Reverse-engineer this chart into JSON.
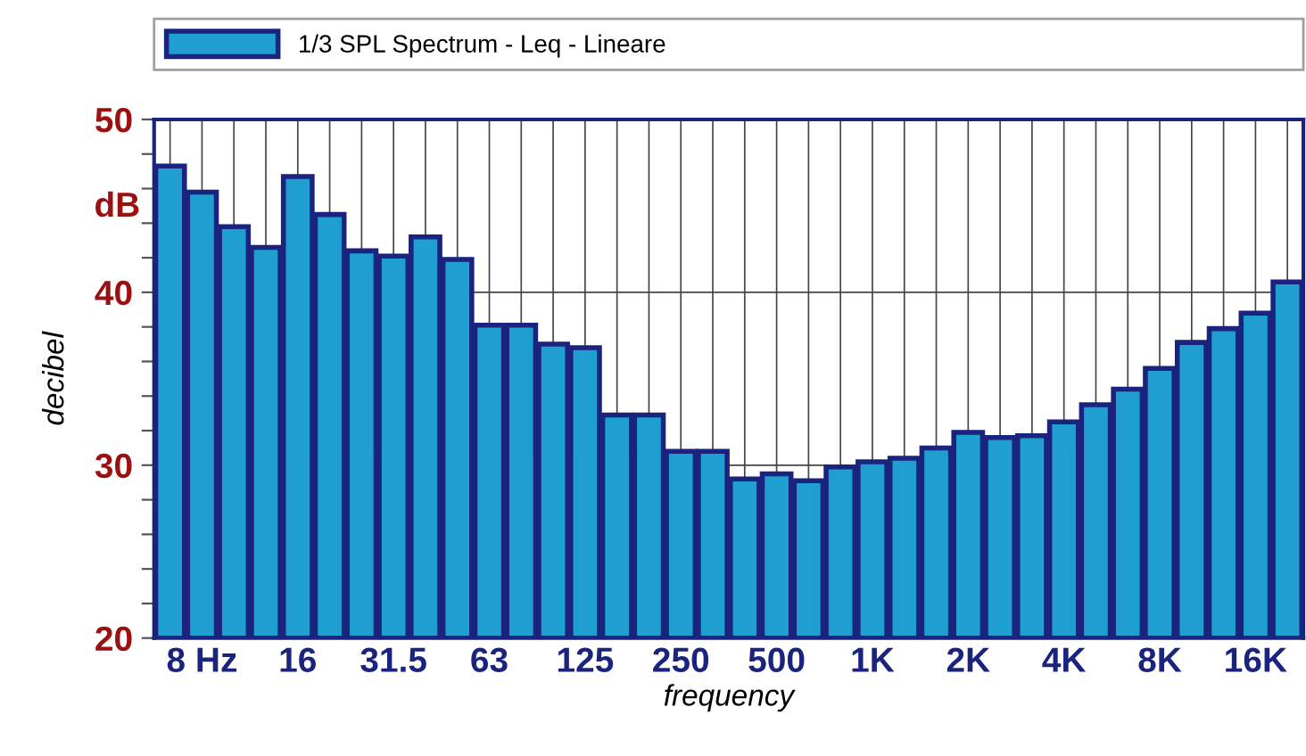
{
  "chart_data": {
    "type": "bar",
    "xlabel": "frequency",
    "ylabel": "decibel",
    "annotations": [
      "dB"
    ],
    "categories": [
      null,
      "8 Hz",
      null,
      null,
      "16",
      null,
      null,
      "31.5",
      null,
      null,
      "63",
      null,
      null,
      "125",
      null,
      null,
      "250",
      null,
      null,
      "500",
      null,
      null,
      "1K",
      null,
      null,
      "2K",
      null,
      null,
      "4K",
      null,
      null,
      "8K",
      null,
      null,
      "16K",
      null
    ],
    "series": [
      {
        "name": "1/3 SPL Spectrum - Leq - Lineare",
        "color": "#1e9fd0",
        "values": [
          47.3,
          45.8,
          43.8,
          42.6,
          46.7,
          44.5,
          42.4,
          42.1,
          43.2,
          41.9,
          38.1,
          38.1,
          37.0,
          36.8,
          32.9,
          32.9,
          30.8,
          30.8,
          29.2,
          29.5,
          29.1,
          29.9,
          30.2,
          30.4,
          31.0,
          31.9,
          31.6,
          31.7,
          32.5,
          33.5,
          34.4,
          35.6,
          37.1,
          37.9,
          38.8,
          40.6
        ]
      }
    ],
    "ylim": [
      20,
      50
    ],
    "yticks": [
      20,
      {
        "value": 22,
        "label": null
      },
      {
        "value": 24,
        "label": null
      },
      {
        "value": 26,
        "label": null
      },
      {
        "value": 28,
        "label": null
      },
      30,
      {
        "value": 32,
        "label": null
      },
      {
        "value": 34,
        "label": null
      },
      {
        "value": 36,
        "label": null
      },
      {
        "value": 38,
        "label": null
      },
      40,
      {
        "value": 42,
        "label": null
      },
      {
        "value": 44,
        "label": null
      },
      {
        "value": 46,
        "label": null
      },
      {
        "value": 48,
        "label": null
      },
      50
    ],
    "grid": true,
    "legend": "top"
  }
}
